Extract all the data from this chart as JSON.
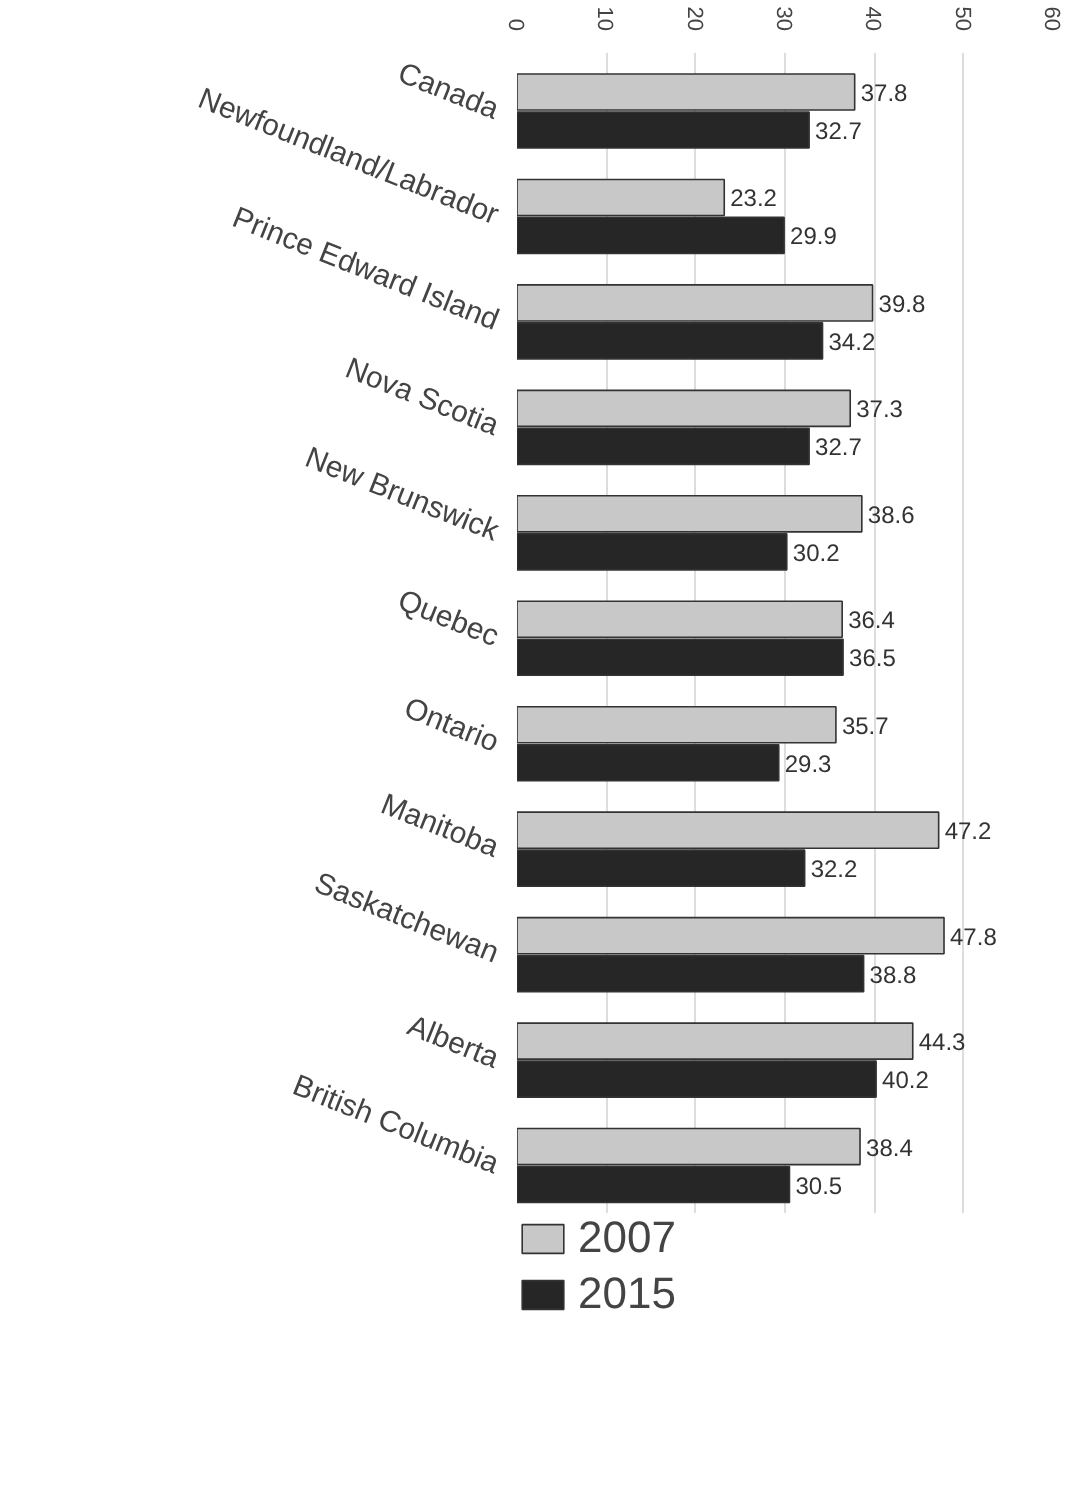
{
  "chart_data": {
    "type": "bar",
    "orientation": "horizontal",
    "categories": [
      "Canada",
      "Newfoundland/Labrador",
      "Prince Edward Island",
      "Nova Scotia",
      "New Brunswick",
      "Quebec",
      "Ontario",
      "Manitoba",
      "Saskatchewan",
      "Alberta",
      "British Columbia"
    ],
    "series": [
      {
        "name": "2007",
        "color": "#c8c8c8",
        "values": [
          37.8,
          23.2,
          39.8,
          37.3,
          38.6,
          36.4,
          35.7,
          47.2,
          47.8,
          44.3,
          38.4
        ]
      },
      {
        "name": "2015",
        "color": "#262626",
        "values": [
          32.7,
          29.9,
          34.2,
          32.7,
          30.2,
          36.5,
          29.3,
          32.2,
          38.8,
          40.2,
          30.5
        ]
      }
    ],
    "xlim": [
      0,
      60
    ],
    "xticks": [
      0,
      10,
      20,
      30,
      40,
      50,
      60
    ],
    "grid": "x",
    "data_labels": true,
    "legend": "bottom left"
  }
}
